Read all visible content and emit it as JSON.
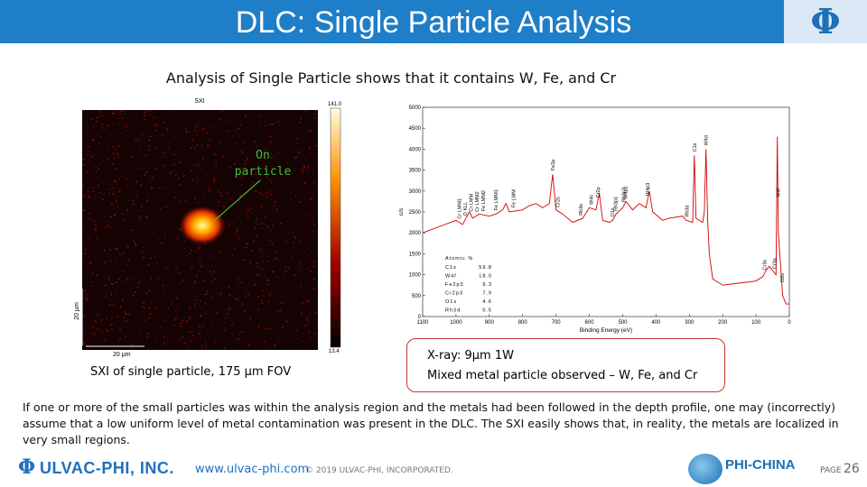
{
  "header": {
    "title": "DLC: Single Particle Analysis",
    "logo": "Φ"
  },
  "subtitle": "Analysis of Single Particle shows that it contains W, Fe, and Cr",
  "sxi": {
    "title": "SXI",
    "scale_max": "141.0",
    "scale_min": "13.4",
    "annotation": [
      "On",
      "particle"
    ],
    "scale_vertical": "20 µm",
    "scale_horizontal": "20 µm",
    "caption": "SXI of single particle, 175 µm FOV"
  },
  "chart_data": {
    "type": "line",
    "x_label": "Binding Energy (eV)",
    "y_label": "c/s",
    "x": [
      1100,
      1050,
      1000,
      980,
      960,
      950,
      930,
      900,
      880,
      860,
      850,
      840,
      800,
      780,
      760,
      740,
      720,
      710,
      700,
      680,
      650,
      620,
      600,
      580,
      570,
      560,
      540,
      530,
      520,
      500,
      490,
      470,
      450,
      430,
      420,
      410,
      380,
      360,
      320,
      310,
      290,
      285,
      280,
      260,
      255,
      250,
      245,
      240,
      230,
      200,
      150,
      100,
      80,
      70,
      60,
      40,
      36,
      33,
      20,
      10,
      0
    ],
    "series": [
      {
        "color": "#d00000",
        "values": [
          2000,
          2150,
          2300,
          2200,
          2500,
          2350,
          2450,
          2400,
          2450,
          2550,
          2700,
          2500,
          2550,
          2650,
          2700,
          2600,
          2700,
          3400,
          2550,
          2450,
          2250,
          2350,
          2600,
          2550,
          2950,
          2300,
          2250,
          2300,
          2450,
          2600,
          2750,
          2550,
          2700,
          2600,
          3000,
          2500,
          2300,
          2350,
          2400,
          2300,
          2250,
          3850,
          2350,
          2250,
          2500,
          4000,
          2300,
          1500,
          900,
          750,
          800,
          850,
          950,
          1100,
          1200,
          1000,
          4300,
          2000,
          500,
          300,
          300
        ]
      }
    ],
    "xlim": [
      1100,
      0
    ],
    "ylim": [
      0,
      5000
    ],
    "xticks": [
      1100,
      1000,
      900,
      800,
      700,
      600,
      500,
      400,
      300,
      200,
      100,
      0
    ],
    "yticks": [
      0,
      500,
      1000,
      1500,
      2000,
      2500,
      3000,
      3500,
      4000,
      4500,
      5000
    ],
    "annotations": [
      {
        "label": "Cr LMM1",
        "x": 990
      },
      {
        "label": "O KLL",
        "x": 972
      },
      {
        "label": "Cr LMM",
        "x": 955
      },
      {
        "label": "Cr LMM2",
        "x": 937
      },
      {
        "label": "Fe LMM2",
        "x": 918
      },
      {
        "label": "Fe LMM1",
        "x": 880
      },
      {
        "label": "Fe LMM",
        "x": 828
      },
      {
        "label": "Fe2p",
        "x": 710
      },
      {
        "label": "Cr2s",
        "x": 695
      },
      {
        "label": "Rh3s",
        "x": 626
      },
      {
        "label": "W4s",
        "x": 595
      },
      {
        "label": "Cr2p",
        "x": 575
      },
      {
        "label": "O1s",
        "x": 531
      },
      {
        "label": "Rh3p1",
        "x": 521
      },
      {
        "label": "W4p1",
        "x": 492
      },
      {
        "label": "Rh3p3",
        "x": 497
      },
      {
        "label": "W4p3",
        "x": 425
      },
      {
        "label": "Rh3d",
        "x": 307
      },
      {
        "label": "C1s",
        "x": 285
      },
      {
        "label": "W4d",
        "x": 250
      },
      {
        "label": "Cr3s",
        "x": 75
      },
      {
        "label": "Cr3p",
        "x": 45
      },
      {
        "label": "W4f",
        "x": 34
      },
      {
        "label": "O2s",
        "x": 22
      }
    ]
  },
  "atomic": {
    "title": "Atomic %",
    "rows": [
      [
        "C1s",
        "59.8"
      ],
      [
        "W4f",
        "18.0"
      ],
      [
        "Fe2p3",
        "9.3"
      ],
      [
        "Cr2p3",
        "7.9"
      ],
      [
        "O1s",
        "4.6"
      ],
      [
        "Rh3d",
        "0.5"
      ]
    ]
  },
  "xray_box": [
    "X-ray: 9µm 1W",
    "Mixed metal particle observed – W, Fe, and Cr"
  ],
  "paragraph": "If one or more of the small particles was within the analysis region and the metals had been followed in the depth profile, one may (incorrectly) assume that a low uniform level of metal contamination was present in the DLC.  The SXI easily shows that, in reality, the metals are localized in very small regions.",
  "footer": {
    "company": "ULVAC-PHI, INC.",
    "url": "www.ulvac-phi.com",
    "copyright": "© 2019 ULVAC-PHI, INCORPORATED.",
    "partner": "PHI-CHINA",
    "page_label": "PAGE",
    "page": 26
  }
}
